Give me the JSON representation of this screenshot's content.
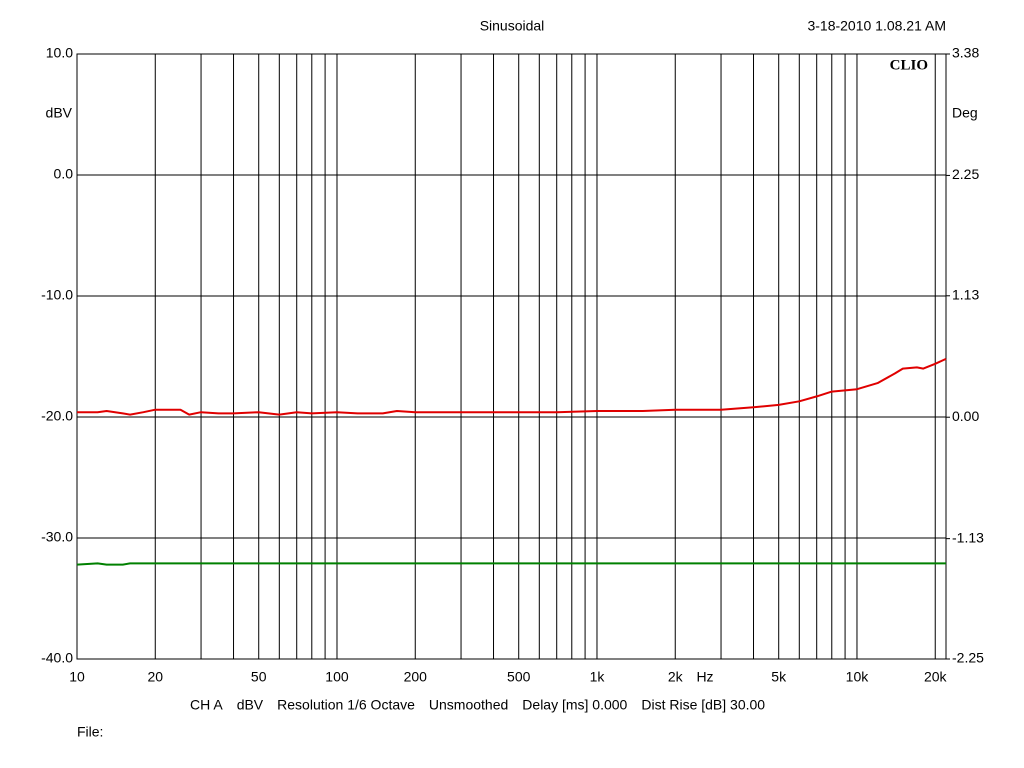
{
  "chart_data": {
    "type": "line",
    "title": "Sinusoidal",
    "timestamp": "3-18-2010 1.08.21 AM",
    "brand": "CLIO",
    "y_label": "dBV",
    "y2_label": "Deg",
    "x_label": "Hz",
    "footer": [
      "CH A",
      "dBV",
      "Resolution 1/6 Octave",
      "Unsmoothed",
      "Delay [ms] 0.000",
      "Dist Rise [dB] 30.00"
    ],
    "file_label": "File:",
    "log_x": true,
    "grid": true,
    "xlim": [
      10,
      22000
    ],
    "xticks": [
      10,
      20,
      50,
      100,
      200,
      500,
      {
        "value": 1000,
        "label": "1k"
      },
      {
        "value": 2000,
        "label": "2k"
      },
      {
        "value": 5000,
        "label": "5k"
      },
      {
        "value": 10000,
        "label": "10k"
      },
      {
        "value": 20000,
        "label": "20k"
      }
    ],
    "xminor": [
      30,
      40,
      60,
      70,
      80,
      90,
      300,
      400,
      600,
      700,
      800,
      900,
      3000,
      4000,
      6000,
      7000,
      8000,
      9000
    ],
    "ylim": [
      -40,
      10
    ],
    "yticks": [
      {
        "value": 10,
        "label": "10.0"
      },
      {
        "value": 0,
        "label": "0.0"
      },
      {
        "value": -10,
        "label": "-10.0"
      },
      {
        "value": -20,
        "label": "-20.0"
      },
      {
        "value": -30,
        "label": "-30.0"
      },
      {
        "value": -40,
        "label": "-40.0"
      }
    ],
    "y2lim": [
      -2.25,
      3.38
    ],
    "y2ticks": [
      3.38,
      2.25,
      1.13,
      {
        "value": 0,
        "label": "0.00"
      },
      -1.13,
      -2.25
    ],
    "x": [
      10,
      12,
      13,
      15,
      16,
      18,
      20,
      25,
      27,
      30,
      35,
      40,
      50,
      60,
      70,
      80,
      100,
      120,
      150,
      170,
      200,
      300,
      500,
      700,
      1000,
      1500,
      2000,
      3000,
      4000,
      5000,
      6000,
      7000,
      8000,
      9000,
      10000,
      12000,
      14000,
      15000,
      17000,
      18000,
      20000,
      22000
    ],
    "series": [
      {
        "color": "#e00000",
        "values": [
          -19.6,
          -19.6,
          -19.5,
          -19.7,
          -19.8,
          -19.6,
          -19.4,
          -19.4,
          -19.8,
          -19.6,
          -19.7,
          -19.7,
          -19.6,
          -19.8,
          -19.6,
          -19.7,
          -19.6,
          -19.7,
          -19.7,
          -19.5,
          -19.6,
          -19.6,
          -19.6,
          -19.6,
          -19.5,
          -19.5,
          -19.4,
          -19.4,
          -19.2,
          -19.0,
          -18.7,
          -18.3,
          -17.9,
          -17.8,
          -17.7,
          -17.2,
          -16.4,
          -16.0,
          -15.9,
          -16.0,
          -15.6,
          -15.2
        ]
      },
      {
        "color": "#008000",
        "values": [
          -32.2,
          -32.1,
          -32.2,
          -32.2,
          -32.1,
          -32.1,
          -32.1,
          -32.1,
          -32.1,
          -32.1,
          -32.1,
          -32.1,
          -32.1,
          -32.1,
          -32.1,
          -32.1,
          -32.1,
          -32.1,
          -32.1,
          -32.1,
          -32.1,
          -32.1,
          -32.1,
          -32.1,
          -32.1,
          -32.1,
          -32.1,
          -32.1,
          -32.1,
          -32.1,
          -32.1,
          -32.1,
          -32.1,
          -32.1,
          -32.1,
          -32.1,
          -32.1,
          -32.1,
          -32.1,
          -32.1,
          -32.1,
          -32.1
        ]
      }
    ]
  }
}
